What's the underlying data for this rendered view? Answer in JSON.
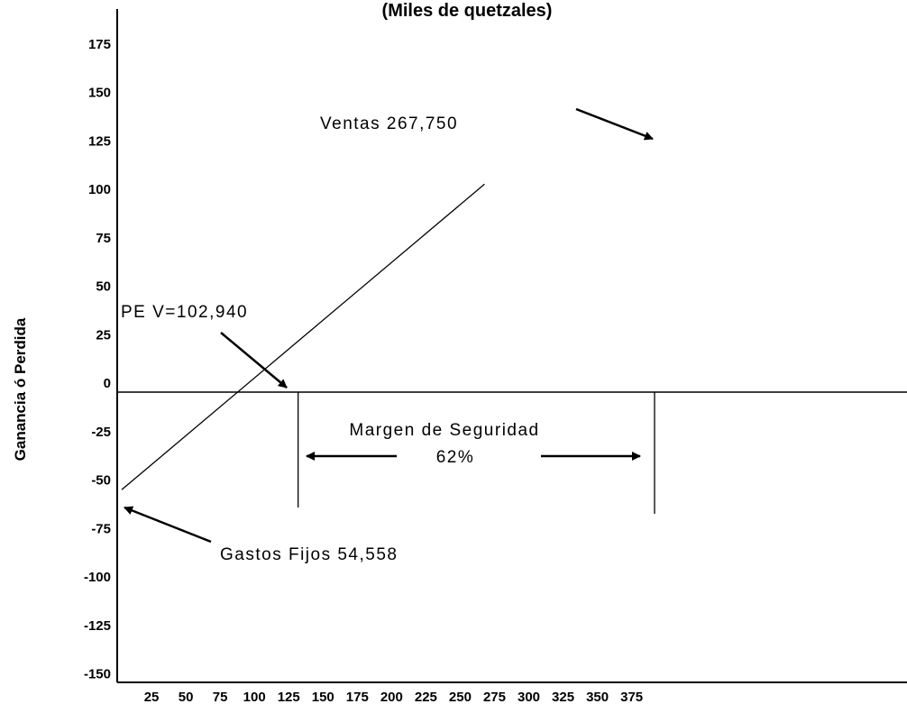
{
  "chart_data": {
    "type": "line",
    "title": "(Miles de quetzales)",
    "xlabel": "",
    "ylabel": "Ganancia ó Perdida",
    "x_ticks": [
      25,
      50,
      75,
      100,
      125,
      150,
      175,
      200,
      225,
      250,
      275,
      300,
      325,
      350,
      375
    ],
    "y_ticks": [
      175,
      150,
      125,
      100,
      75,
      50,
      25,
      0,
      -25,
      -50,
      -75,
      -100,
      -125,
      -150
    ],
    "xlim": [
      0,
      375
    ],
    "ylim": [
      -150,
      175
    ],
    "grid": false,
    "series": [
      {
        "x": [
          0,
          102.94,
          267.75
        ],
        "y": [
          -54.558,
          0,
          125
        ]
      }
    ],
    "break_even_x": 102.94,
    "sales_x": 267.75,
    "annotations": {
      "sales": "Ventas  267,750",
      "break_even": "PE V=102,940",
      "margin_label": "Margen de Seguridad",
      "margin_value": "62%",
      "fixed_costs": "Gastos Fijos 54,558"
    }
  }
}
